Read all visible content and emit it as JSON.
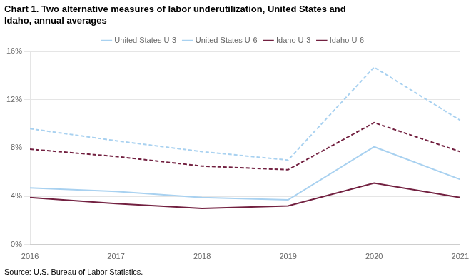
{
  "chart_data": {
    "type": "line",
    "title": [
      "Chart 1. Two alternative measures of labor underutilization, United States and",
      "Idaho, annual averages"
    ],
    "annotations": [
      "Source: U.S. Bureau of Labor Statistics."
    ],
    "categories": [
      "2016",
      "2017",
      "2018",
      "2019",
      "2020",
      "2021"
    ],
    "series": [
      {
        "name": "United States U-3",
        "color": "#a8d1f0",
        "line_style": "solid",
        "values": [
          4.7,
          4.4,
          3.9,
          3.7,
          8.1,
          5.4
        ]
      },
      {
        "name": "United States U-6",
        "color": "#a8d1f0",
        "line_style": "dashed",
        "values": [
          9.6,
          8.6,
          7.7,
          7.0,
          14.7,
          10.3
        ]
      },
      {
        "name": "Idaho U-3",
        "color": "#722040",
        "line_style": "solid",
        "values": [
          3.9,
          3.4,
          3.0,
          3.2,
          5.1,
          3.9
        ]
      },
      {
        "name": "Idaho U-6",
        "color": "#722040",
        "line_style": "dashed",
        "values": [
          7.9,
          7.3,
          6.5,
          6.2,
          10.1,
          7.7
        ]
      }
    ],
    "ylim": [
      0,
      16
    ],
    "yticks": [
      {
        "value": 0,
        "label": "0%"
      },
      {
        "value": 4,
        "label": "4%"
      },
      {
        "value": 8,
        "label": "8%"
      },
      {
        "value": 12,
        "label": "12%"
      },
      {
        "value": 16,
        "label": "16%"
      }
    ],
    "grid": true,
    "legend": "top"
  }
}
